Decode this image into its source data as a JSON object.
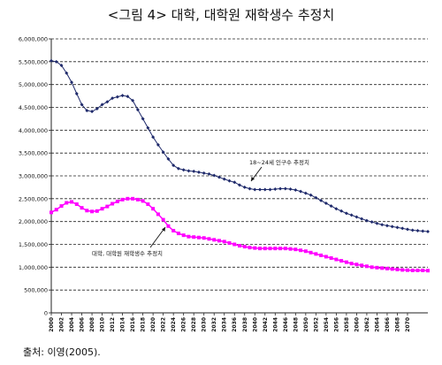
{
  "figure": {
    "title": "<그림 4> 대학, 대학원 재학생수 추정치",
    "source": "출처: 이영(2005)."
  },
  "chart_data": {
    "type": "line",
    "title": "<그림 4> 대학, 대학원 재학생수 추정치",
    "xlabel": "",
    "ylabel": "",
    "ylim": [
      0,
      6000000
    ],
    "y_ticks": [
      0,
      500000,
      1000000,
      1500000,
      2000000,
      2500000,
      3000000,
      3500000,
      4000000,
      4500000,
      5000000,
      5500000,
      6000000
    ],
    "y_tick_labels": [
      "0",
      "500,000",
      "1,000,000",
      "1,500,000",
      "2,000,000",
      "2,500,000",
      "3,000,000",
      "3,500,000",
      "4,000,000",
      "4,500,000",
      "5,000,000",
      "5,500,000",
      "6,000,000"
    ],
    "x_tick_labels": [
      "2000",
      "2002",
      "2004",
      "2006",
      "2008",
      "2010",
      "2012",
      "2014",
      "2016",
      "2018",
      "2020",
      "2022",
      "2024",
      "2026",
      "2028",
      "2030",
      "2032",
      "2034",
      "2036",
      "2038",
      "2040",
      "2042",
      "2044",
      "2046",
      "2048",
      "2050",
      "2052",
      "2054",
      "2056",
      "2058",
      "2060",
      "2062",
      "2064",
      "2066",
      "2068",
      "2070"
    ],
    "grid": "horizontal dashed",
    "series": [
      {
        "name": "18~24세 인구수 추정치",
        "color": "#1f2a6b",
        "x_start": 2000,
        "step": 1,
        "values": [
          5520000,
          5500000,
          5420000,
          5250000,
          5050000,
          4800000,
          4560000,
          4430000,
          4410000,
          4470000,
          4560000,
          4620000,
          4700000,
          4730000,
          4760000,
          4740000,
          4650000,
          4450000,
          4250000,
          4050000,
          3850000,
          3680000,
          3520000,
          3370000,
          3230000,
          3160000,
          3130000,
          3110000,
          3100000,
          3080000,
          3060000,
          3040000,
          3010000,
          2970000,
          2930000,
          2890000,
          2860000,
          2800000,
          2750000,
          2720000,
          2700000,
          2700000,
          2700000,
          2700000,
          2710000,
          2720000,
          2720000,
          2710000,
          2690000,
          2660000,
          2620000,
          2580000,
          2520000,
          2460000,
          2400000,
          2340000,
          2280000,
          2230000,
          2180000,
          2140000,
          2100000,
          2060000,
          2020000,
          1990000,
          1960000,
          1930000,
          1910000,
          1890000,
          1870000,
          1850000,
          1830000,
          1810000,
          1800000,
          1790000,
          1780000
        ]
      },
      {
        "name": "대학, 대학원 재학생수 추정치",
        "color": "#ff00ff",
        "x_start": 2000,
        "step": 1,
        "values": [
          2200000,
          2260000,
          2340000,
          2410000,
          2430000,
          2380000,
          2300000,
          2240000,
          2220000,
          2230000,
          2280000,
          2330000,
          2390000,
          2440000,
          2480000,
          2500000,
          2500000,
          2480000,
          2450000,
          2380000,
          2280000,
          2160000,
          2040000,
          1900000,
          1800000,
          1740000,
          1700000,
          1670000,
          1660000,
          1650000,
          1640000,
          1620000,
          1600000,
          1580000,
          1560000,
          1530000,
          1500000,
          1470000,
          1450000,
          1430000,
          1420000,
          1410000,
          1410000,
          1410000,
          1410000,
          1410000,
          1410000,
          1400000,
          1390000,
          1370000,
          1350000,
          1320000,
          1290000,
          1260000,
          1230000,
          1200000,
          1170000,
          1140000,
          1110000,
          1080000,
          1060000,
          1040000,
          1020000,
          1000000,
          990000,
          980000,
          970000,
          960000,
          950000,
          940000,
          935000,
          930000,
          930000,
          930000,
          925000
        ]
      }
    ],
    "annotations": [
      {
        "text": "18~24세 인구수 추정치",
        "series": 0
      },
      {
        "text": "대학, 대학원 재학생수 추정치",
        "series": 1
      }
    ]
  }
}
